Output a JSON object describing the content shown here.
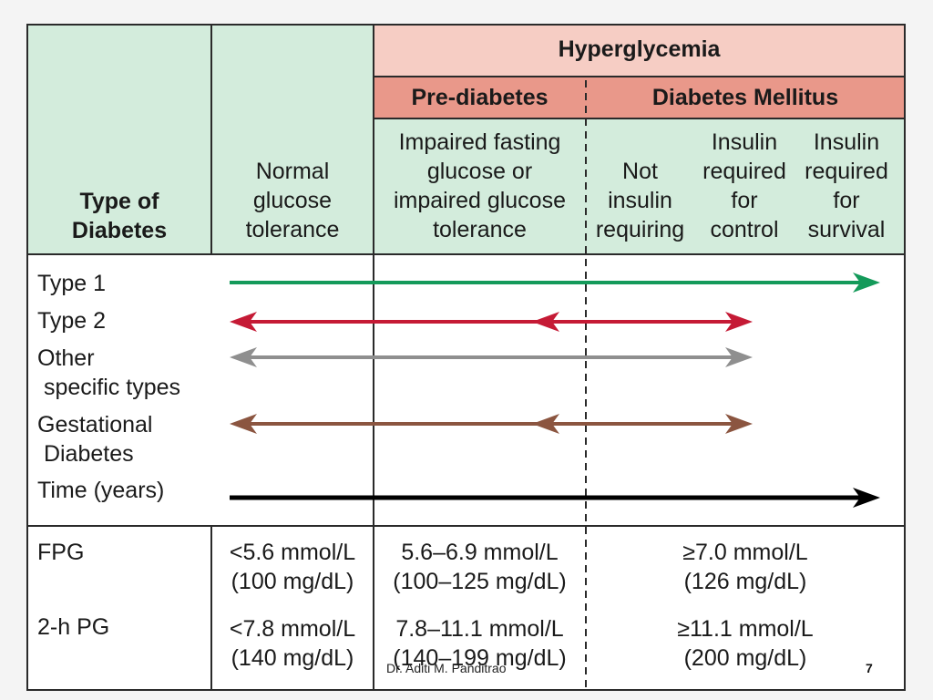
{
  "header": {
    "type_of_diabetes": "Type of\nDiabetes",
    "normal": "Normal\nglucose\ntolerance",
    "hyperglycemia": "Hyperglycemia",
    "prediabetes": "Pre-diabetes",
    "diabetes_mellitus": "Diabetes Mellitus",
    "impaired": "Impaired fasting\nglucose or\nimpaired glucose\ntolerance",
    "not_insulin": "Not\ninsulin\nrequiring",
    "insulin_control": "Insulin\nrequired\nfor\ncontrol",
    "insulin_survival": "Insulin\nrequired\nfor\nsurvival"
  },
  "rows": [
    {
      "label": "Type 1",
      "color": "#149a5a",
      "arrow": "right",
      "from": "normal",
      "to": "insulin-survival",
      "inner_arrow": null
    },
    {
      "label": "Type 2",
      "color": "#c51a35",
      "arrow": "both",
      "from": "normal",
      "to": "insulin-control",
      "inner_arrow": "prediabetes"
    },
    {
      "label": "Other\n specific types",
      "color": "#8f8f8f",
      "arrow": "both",
      "from": "normal",
      "to": "insulin-control",
      "inner_arrow": null
    },
    {
      "label": "Gestational\n Diabetes",
      "color": "#8b5540",
      "arrow": "both",
      "from": "normal",
      "to": "insulin-control",
      "inner_arrow": "prediabetes"
    },
    {
      "label": "Time (years)",
      "color": "#000000",
      "arrow": "right",
      "from": "normal",
      "to": "insulin-survival",
      "inner_arrow": null
    }
  ],
  "criteria": {
    "fpg": {
      "label": "FPG",
      "normal": "<5.6 mmol/L\n(100 mg/dL)",
      "prediabetes": "5.6–6.9 mmol/L\n(100–125 mg/dL)",
      "diabetes": "≥7.0 mmol/L\n(126 mg/dL)"
    },
    "pg2h": {
      "label": "2-h PG",
      "normal": "<7.8 mmol/L\n(140 mg/dL)",
      "prediabetes": "7.8–11.1 mmol/L\n(140–199 mg/dL)",
      "diabetes": "≥11.1 mmol/L\n(200 mg/dL)"
    }
  },
  "footer": {
    "credit": "Dr. Aditi M. Panditrao",
    "slide_number": "7"
  },
  "colors": {
    "header_green": "#d3ecdc",
    "hyperglycemia_pink": "#f6cdc4",
    "subheader_salmon": "#e9988a",
    "background": "#ffffff"
  }
}
